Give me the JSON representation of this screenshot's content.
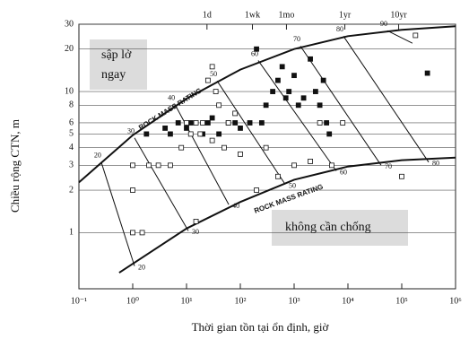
{
  "chart_data": {
    "type": "scatter",
    "x_label": "Thời gian tồn tại ổn định, giờ",
    "y_label": "Chiều rộng CTN, m",
    "log_x": true,
    "log_y": true,
    "xlim": [
      0.1,
      1000000
    ],
    "ylim": [
      0.4,
      30
    ],
    "xticks": [
      {
        "value": 0.1,
        "label": "10⁻¹"
      },
      {
        "value": 1,
        "label": "10⁰"
      },
      {
        "value": 10,
        "label": "10¹"
      },
      {
        "value": 100,
        "label": "10²"
      },
      {
        "value": 1000,
        "label": "10³"
      },
      {
        "value": 10000,
        "label": "10⁴"
      },
      {
        "value": 100000,
        "label": "10⁵"
      },
      {
        "value": 1000000,
        "label": "10⁶"
      }
    ],
    "x2ticks": [
      {
        "value": 24,
        "label": "1d"
      },
      {
        "value": 168,
        "label": "1wk"
      },
      {
        "value": 720,
        "label": "1mo"
      },
      {
        "value": 8760,
        "label": "1yr"
      },
      {
        "value": 87600,
        "label": "10yr"
      }
    ],
    "yticks": [
      1,
      2,
      3,
      4,
      5,
      6,
      8,
      10,
      20,
      30
    ],
    "grid": true,
    "series": [
      {
        "marker": "filled",
        "color": "#111111",
        "x": [
          1.8,
          4,
          5,
          7,
          10,
          12,
          20,
          25,
          30,
          40,
          60,
          80,
          100,
          150,
          200,
          250,
          300,
          400,
          500,
          600,
          700,
          800,
          1000,
          1200,
          1500,
          2000,
          2500,
          3000,
          3500,
          4000,
          4500,
          300000
        ],
        "values": [
          5,
          5.5,
          5,
          6,
          5.5,
          6,
          5,
          6,
          6.5,
          5,
          6,
          6,
          5.5,
          6,
          20,
          6,
          8,
          10,
          12,
          15,
          9,
          10,
          13,
          8,
          9,
          17,
          10,
          8,
          12,
          6,
          5,
          13.5
        ]
      },
      {
        "marker": "open",
        "color": "#111111",
        "x": [
          1,
          1,
          1,
          1.5,
          2,
          3,
          5,
          8,
          10,
          12,
          15,
          18,
          20,
          25,
          30,
          35,
          40,
          50,
          60,
          80,
          30,
          100,
          200,
          300,
          500,
          1000,
          2000,
          3000,
          5000,
          8000,
          100000,
          180000,
          15
        ],
        "values": [
          3,
          2,
          1,
          1,
          3,
          3,
          3,
          4,
          6,
          5,
          6,
          5,
          6,
          12,
          15,
          10,
          8,
          4,
          6,
          7,
          4.5,
          3.6,
          2,
          4,
          2.5,
          3,
          3.2,
          6,
          3,
          6,
          2.5,
          25,
          1.2
        ]
      }
    ],
    "curves": [
      {
        "x": [
          0.1,
          1,
          10,
          100,
          1000,
          10000,
          100000,
          1000000
        ],
        "values": [
          2.27,
          4.9,
          8.9,
          14.3,
          20,
          24.7,
          27.4,
          29
        ]
      },
      {
        "x": [
          0.56,
          10,
          100,
          1000,
          10000,
          100000,
          1000000
        ],
        "values": [
          0.52,
          1.07,
          1.65,
          2.37,
          2.94,
          3.26,
          3.4
        ]
      }
    ],
    "rmr_lines": [
      {
        "x": [
          0.26,
          1.08
        ],
        "values": [
          3.16,
          0.58
        ],
        "top_label": "20",
        "bottom_label": "20"
      },
      {
        "x": [
          1.08,
          10.8
        ],
        "values": [
          4.7,
          1.03
        ],
        "top_label": "30",
        "bottom_label": "30"
      },
      {
        "x": [
          6.1,
          61
        ],
        "values": [
          8.1,
          1.58
        ],
        "top_label": "40",
        "bottom_label": "40"
      },
      {
        "x": [
          37,
          681
        ],
        "values": [
          11.9,
          2.2
        ],
        "top_label": "50",
        "bottom_label": "50"
      },
      {
        "x": [
          215,
          6070
        ],
        "values": [
          16.6,
          2.74
        ],
        "top_label": "60",
        "bottom_label": "60"
      },
      {
        "x": [
          1310,
          41400
        ],
        "values": [
          21,
          3.0
        ],
        "top_label": "70",
        "bottom_label": "70"
      },
      {
        "x": [
          8260,
          316000
        ],
        "values": [
          24.7,
          3.16
        ],
        "top_label": "80",
        "bottom_label": "80"
      },
      {
        "x": [
          54000,
          158000
        ],
        "values": [
          27,
          22
        ],
        "top_label": "90"
      }
    ],
    "curve_labels": [
      "ROCK MASS RATING",
      "ROCK MASS RATING"
    ],
    "annotations": [
      "sập lở",
      "ngay",
      "không cần chống"
    ]
  }
}
